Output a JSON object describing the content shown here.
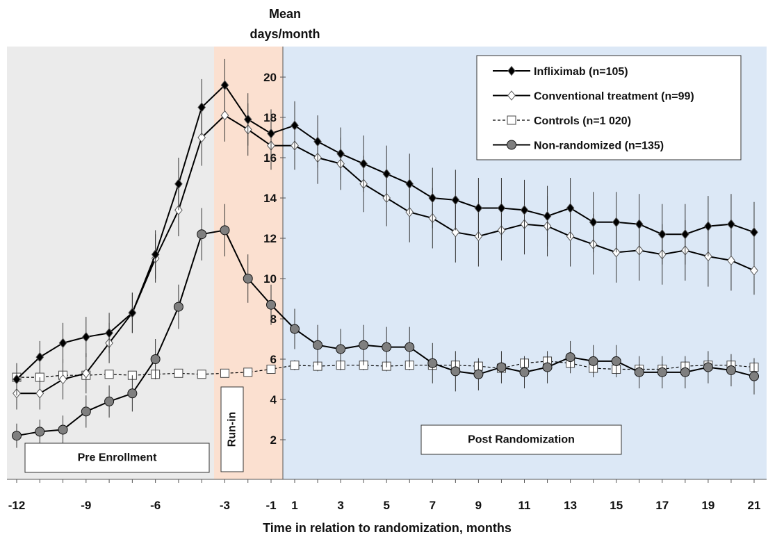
{
  "chart_data": {
    "type": "line",
    "ylabel_line1": "Mean",
    "ylabel_line2": "days/month",
    "xlabel": "Time in relation to randomization, months",
    "xlim": [
      -12.5,
      21.5
    ],
    "ylim": [
      -0.5,
      22
    ],
    "y_ticks": [
      2,
      4,
      6,
      8,
      10,
      12,
      14,
      16,
      18,
      20
    ],
    "x_ticks": [
      -12,
      -9,
      -6,
      -3,
      -1,
      1,
      3,
      5,
      7,
      9,
      11,
      13,
      15,
      17,
      19,
      21
    ],
    "regions": [
      {
        "label": "Pre Enrollment",
        "x_from": -12.5,
        "x_to": -3.5,
        "color": "#ebebeb"
      },
      {
        "label": "Run-in",
        "x_from": -3.5,
        "x_to": 0,
        "color": "#fbe0d0"
      },
      {
        "label": "Post Randomization",
        "x_from": 0,
        "x_to": 21.5,
        "color": "#dce8f6"
      }
    ],
    "legend": {
      "position": "top-right"
    },
    "series": [
      {
        "name": "Infliximab (n=105)",
        "marker": "diamond-filled",
        "line_style": "solid",
        "color": "#000000",
        "x": [
          -12,
          -11,
          -10,
          -9,
          -8,
          -7,
          -6,
          -5,
          -4,
          -3,
          -2,
          -1,
          1,
          2,
          3,
          4,
          5,
          6,
          7,
          8,
          9,
          10,
          11,
          12,
          13,
          14,
          15,
          16,
          17,
          18,
          19,
          20,
          21
        ],
        "values": [
          5.0,
          6.1,
          6.8,
          7.1,
          7.3,
          8.3,
          11.2,
          14.7,
          18.5,
          19.6,
          17.9,
          17.2,
          17.6,
          16.8,
          16.2,
          15.7,
          15.2,
          14.7,
          14.0,
          13.9,
          13.5,
          13.5,
          13.4,
          13.1,
          13.5,
          12.8,
          12.8,
          12.7,
          12.2,
          12.2,
          12.6,
          12.7,
          12.3
        ],
        "error": [
          0.8,
          0.8,
          1.0,
          1.0,
          1.0,
          1.0,
          1.2,
          1.3,
          1.4,
          1.3,
          1.3,
          1.2,
          1.2,
          1.3,
          1.3,
          1.4,
          1.4,
          1.5,
          1.5,
          1.5,
          1.5,
          1.5,
          1.5,
          1.5,
          1.5,
          1.5,
          1.5,
          1.5,
          1.5,
          1.5,
          1.5,
          1.5,
          1.5
        ]
      },
      {
        "name": "Conventional treatment (n=99)",
        "marker": "diamond-open",
        "line_style": "solid",
        "color": "#000000",
        "x": [
          -12,
          -11,
          -10,
          -9,
          -8,
          -7,
          -6,
          -5,
          -4,
          -3,
          -2,
          -1,
          1,
          2,
          3,
          4,
          5,
          6,
          7,
          8,
          9,
          10,
          11,
          12,
          13,
          14,
          15,
          16,
          17,
          18,
          19,
          20,
          21
        ],
        "values": [
          4.3,
          4.3,
          5.0,
          5.3,
          6.8,
          8.3,
          11.0,
          13.4,
          17.0,
          18.1,
          17.4,
          16.6,
          16.6,
          16.0,
          15.7,
          14.7,
          14.0,
          13.3,
          13.0,
          12.3,
          12.1,
          12.4,
          12.7,
          12.6,
          12.1,
          11.7,
          11.3,
          11.4,
          11.2,
          11.4,
          11.1,
          10.9,
          10.4
        ],
        "error": [
          0.8,
          0.8,
          1.0,
          1.0,
          1.0,
          1.0,
          1.2,
          1.3,
          1.4,
          1.3,
          1.3,
          1.2,
          1.2,
          1.3,
          1.3,
          1.4,
          1.4,
          1.5,
          1.5,
          1.5,
          1.5,
          1.5,
          1.5,
          1.5,
          1.5,
          1.5,
          1.5,
          1.5,
          1.5,
          1.5,
          1.5,
          1.5,
          1.2
        ]
      },
      {
        "name": "Controls (n=1 020)",
        "marker": "square-open",
        "line_style": "dashed",
        "color": "#000000",
        "x": [
          -12,
          -11,
          -10,
          -9,
          -8,
          -7,
          -6,
          -5,
          -4,
          -3,
          -2,
          -1,
          1,
          2,
          3,
          4,
          5,
          6,
          7,
          8,
          9,
          10,
          11,
          12,
          13,
          14,
          15,
          16,
          17,
          18,
          19,
          20,
          21
        ],
        "values": [
          5.1,
          5.1,
          5.2,
          5.2,
          5.25,
          5.2,
          5.25,
          5.3,
          5.25,
          5.3,
          5.35,
          5.5,
          5.7,
          5.65,
          5.7,
          5.7,
          5.65,
          5.7,
          5.7,
          5.7,
          5.65,
          5.55,
          5.8,
          5.9,
          5.8,
          5.55,
          5.5,
          5.5,
          5.5,
          5.65,
          5.7,
          5.7,
          5.6
        ],
        "error": [
          0.2,
          0.2,
          0.2,
          0.2,
          0.2,
          0.2,
          0.2,
          0.2,
          0.2,
          0.2,
          0.2,
          0.2,
          0.25,
          0.25,
          0.25,
          0.25,
          0.25,
          0.25,
          0.25,
          0.25,
          0.25,
          0.25,
          0.25,
          0.25,
          0.25,
          0.25,
          0.25,
          0.25,
          0.25,
          0.25,
          0.25,
          0.25,
          0.25
        ]
      },
      {
        "name": "Non-randomized (n=135)",
        "marker": "circle-filled",
        "line_style": "solid",
        "color": "#000000",
        "x": [
          -12,
          -11,
          -10,
          -9,
          -8,
          -7,
          -6,
          -5,
          -4,
          -3,
          -2,
          -1,
          1,
          2,
          3,
          4,
          5,
          6,
          7,
          8,
          9,
          10,
          11,
          12,
          13,
          14,
          15,
          16,
          17,
          18,
          19,
          20,
          21
        ],
        "values": [
          2.2,
          2.4,
          2.5,
          3.4,
          3.9,
          4.3,
          6.0,
          8.6,
          12.2,
          12.4,
          10.0,
          8.7,
          7.5,
          6.7,
          6.5,
          6.7,
          6.6,
          6.6,
          5.8,
          5.4,
          5.25,
          5.6,
          5.35,
          5.6,
          6.1,
          5.9,
          5.9,
          5.35,
          5.35,
          5.35,
          5.6,
          5.45,
          5.15
        ],
        "error": [
          0.6,
          0.6,
          0.7,
          0.8,
          0.8,
          0.9,
          1.0,
          1.1,
          1.3,
          1.3,
          1.2,
          1.0,
          1.0,
          1.0,
          1.0,
          1.0,
          1.0,
          1.0,
          1.0,
          1.0,
          0.8,
          0.8,
          0.8,
          0.8,
          0.8,
          0.8,
          0.8,
          0.8,
          0.8,
          0.8,
          0.8,
          0.8,
          0.9
        ]
      }
    ]
  }
}
